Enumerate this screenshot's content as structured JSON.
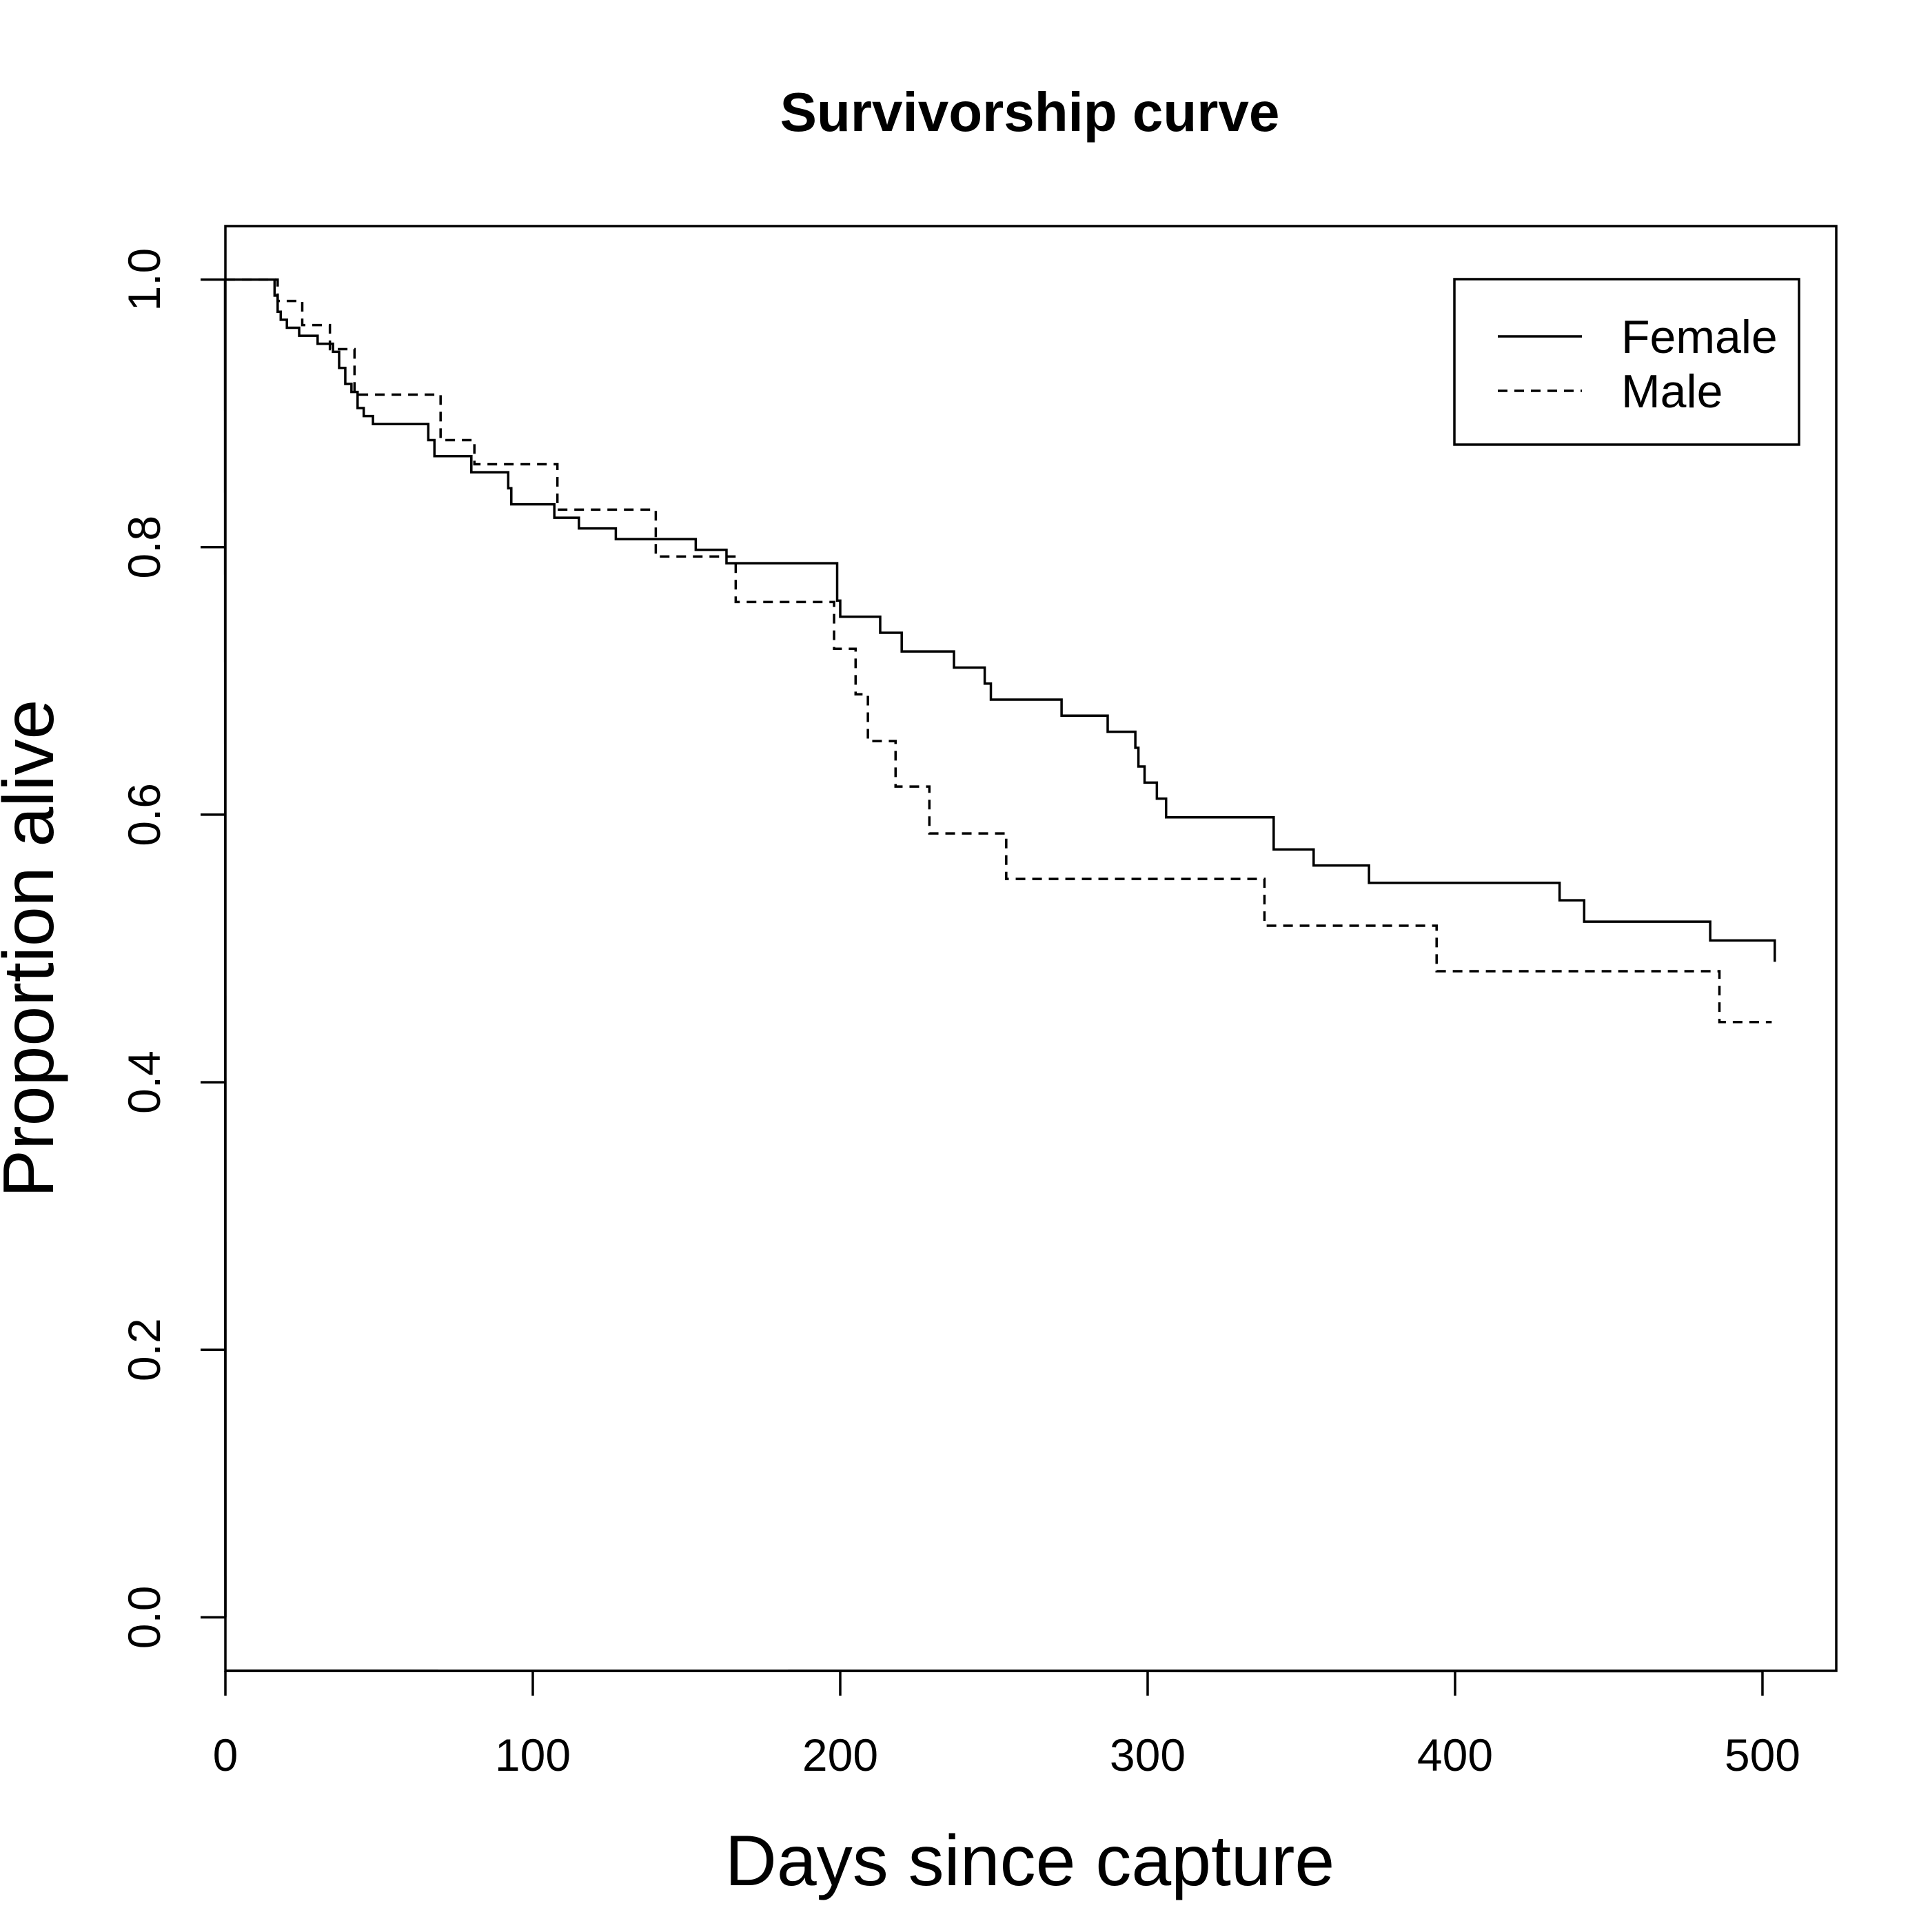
{
  "chart_data": {
    "type": "line",
    "step": true,
    "title": "Survivorship curve",
    "xlabel": "Days since capture",
    "ylabel": "Proportion alive",
    "xlim": [
      0,
      524
    ],
    "ylim": [
      -0.04,
      1.04
    ],
    "xticks": [
      0,
      100,
      200,
      300,
      400,
      500
    ],
    "xtick_labels": [
      "0",
      "100",
      "200",
      "300",
      "400",
      "500"
    ],
    "yticks": [
      0.0,
      0.2,
      0.4,
      0.6,
      0.8,
      1.0
    ],
    "ytick_labels": [
      "0.0",
      "0.2",
      "0.4",
      "0.6",
      "0.8",
      "1.0"
    ],
    "grid": false,
    "legend": {
      "position": "top-right"
    },
    "series": [
      {
        "name": "Female",
        "linestyle": "solid",
        "x": [
          0,
          16,
          17,
          18,
          20,
          24,
          30,
          35,
          37,
          39,
          41,
          43,
          45,
          48,
          66,
          68,
          80,
          92,
          93,
          107,
          115,
          127,
          153,
          163,
          199,
          200,
          213,
          220,
          237,
          247,
          249,
          272,
          287,
          296,
          297,
          299,
          303,
          306,
          341,
          354,
          372,
          434,
          442,
          483,
          504
        ],
        "y": [
          1.0,
          0.988,
          0.976,
          0.97,
          0.964,
          0.958,
          0.952,
          0.946,
          0.934,
          0.922,
          0.916,
          0.904,
          0.898,
          0.892,
          0.88,
          0.868,
          0.856,
          0.844,
          0.832,
          0.822,
          0.814,
          0.806,
          0.798,
          0.788,
          0.76,
          0.748,
          0.736,
          0.722,
          0.71,
          0.698,
          0.686,
          0.674,
          0.662,
          0.65,
          0.636,
          0.624,
          0.612,
          0.598,
          0.574,
          0.562,
          0.549,
          0.536,
          0.52,
          0.506,
          0.49
        ],
        "end_x": 504
      },
      {
        "name": "Male",
        "linestyle": "dashed",
        "x": [
          0,
          17,
          25,
          34,
          42,
          70,
          81,
          108,
          140,
          166,
          198,
          205,
          209,
          218,
          229,
          254,
          338,
          394,
          486,
          503
        ],
        "y": [
          1.0,
          0.984,
          0.966,
          0.948,
          0.914,
          0.88,
          0.862,
          0.828,
          0.793,
          0.759,
          0.724,
          0.69,
          0.655,
          0.621,
          0.586,
          0.552,
          0.517,
          0.483,
          0.445,
          0.445
        ],
        "end_x": 503
      }
    ]
  }
}
